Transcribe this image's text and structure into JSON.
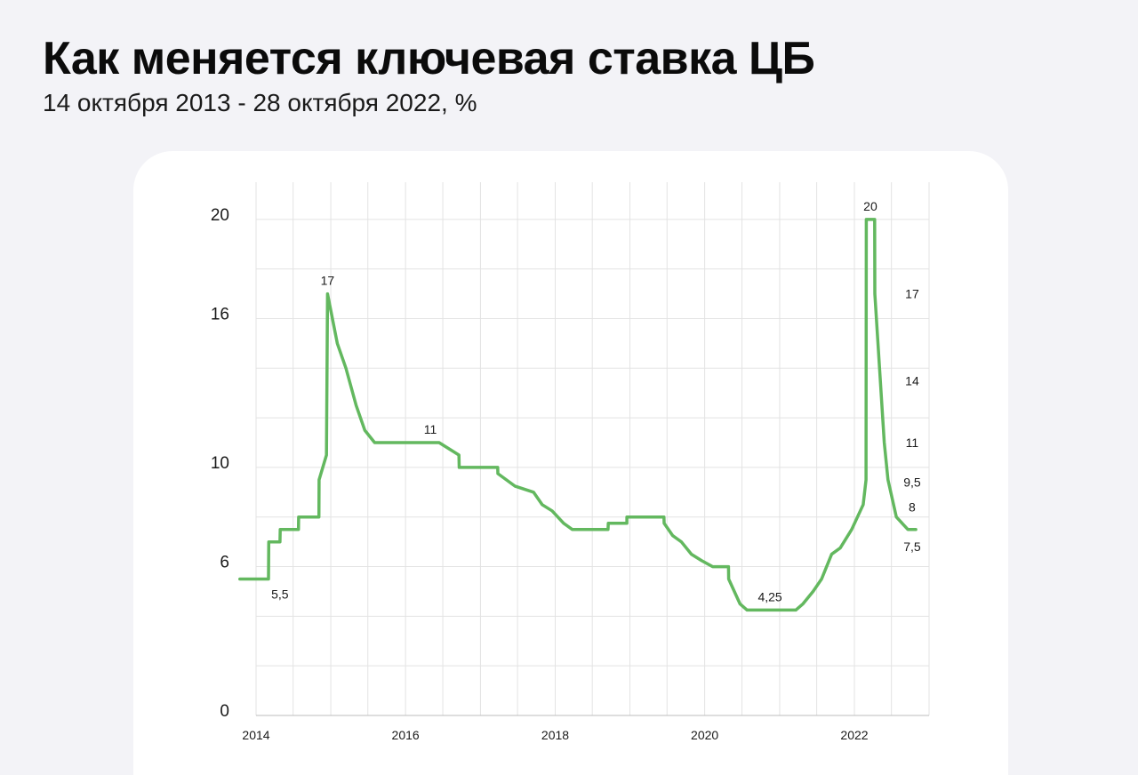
{
  "header": {
    "title": "Как меняется ключевая ставка ЦБ",
    "subtitle": "14 октября 2013 - 28 октября 2022, %"
  },
  "colors": {
    "line": "#63b85f",
    "grid": "#e3e3e3",
    "axis": "#bdbdbd"
  },
  "chart_data": {
    "type": "line",
    "title": "Как меняется ключевая ставка ЦБ",
    "subtitle": "14 октября 2013 - 28 октября 2022, %",
    "xlabel": "",
    "ylabel": "",
    "xlim": [
      "2013-10-14",
      "2022-10-28"
    ],
    "ylim": [
      0,
      21.5
    ],
    "y_ticks": [
      0,
      6,
      10,
      16,
      20
    ],
    "y_tick_labels": [
      "0",
      "6",
      "10",
      "16",
      "20"
    ],
    "x_ticks": [
      "2014-01-01",
      "2016-01-01",
      "2018-01-01",
      "2020-01-01",
      "2022-01-01"
    ],
    "x_tick_labels": [
      "2014",
      "2016",
      "2018",
      "2020",
      "2022"
    ],
    "grid": true,
    "series": [
      {
        "values": [
          [
            "2013-10-14",
            5.5
          ],
          [
            "2014-03-03",
            5.5
          ],
          [
            "2014-03-04",
            7
          ],
          [
            "2014-04-28",
            7
          ],
          [
            "2014-04-29",
            7.5
          ],
          [
            "2014-07-27",
            7.5
          ],
          [
            "2014-07-28",
            8
          ],
          [
            "2014-11-04",
            8
          ],
          [
            "2014-11-05",
            9.5
          ],
          [
            "2014-12-11",
            10.5
          ],
          [
            "2014-12-16",
            17
          ],
          [
            "2015-02-02",
            15
          ],
          [
            "2015-03-16",
            14
          ],
          [
            "2015-05-05",
            12.5
          ],
          [
            "2015-06-16",
            11.5
          ],
          [
            "2015-08-03",
            11
          ],
          [
            "2016-06-13",
            11
          ],
          [
            "2016-09-18",
            10.5
          ],
          [
            "2016-09-19",
            10
          ],
          [
            "2017-03-26",
            10
          ],
          [
            "2017-03-27",
            9.75
          ],
          [
            "2017-06-18",
            9.25
          ],
          [
            "2017-09-17",
            9
          ],
          [
            "2017-10-29",
            8.5
          ],
          [
            "2017-12-17",
            8.25
          ],
          [
            "2018-02-11",
            7.75
          ],
          [
            "2018-03-25",
            7.5
          ],
          [
            "2018-09-16",
            7.5
          ],
          [
            "2018-09-17",
            7.75
          ],
          [
            "2018-12-17",
            7.75
          ],
          [
            "2018-12-17",
            8
          ],
          [
            "2019-06-16",
            8
          ],
          [
            "2019-06-17",
            7.75
          ],
          [
            "2019-07-29",
            7.25
          ],
          [
            "2019-09-09",
            7
          ],
          [
            "2019-10-28",
            6.5
          ],
          [
            "2019-12-16",
            6.25
          ],
          [
            "2020-02-09",
            6
          ],
          [
            "2020-04-26",
            6
          ],
          [
            "2020-04-27",
            5.5
          ],
          [
            "2020-06-21",
            4.5
          ],
          [
            "2020-07-26",
            4.25
          ],
          [
            "2021-03-21",
            4.25
          ],
          [
            "2021-04-25",
            4.5
          ],
          [
            "2021-06-13",
            5
          ],
          [
            "2021-07-25",
            5.5
          ],
          [
            "2021-09-12",
            6.5
          ],
          [
            "2021-10-24",
            6.75
          ],
          [
            "2021-12-19",
            7.5
          ],
          [
            "2022-02-13",
            8.5
          ],
          [
            "2022-02-27",
            9.5
          ],
          [
            "2022-02-28",
            20
          ],
          [
            "2022-04-10",
            20
          ],
          [
            "2022-04-11",
            17
          ],
          [
            "2022-05-04",
            14
          ],
          [
            "2022-05-27",
            11
          ],
          [
            "2022-06-14",
            9.5
          ],
          [
            "2022-07-25",
            8
          ],
          [
            "2022-09-19",
            7.5
          ],
          [
            "2022-10-28",
            7.5
          ]
        ]
      }
    ],
    "annotations": [
      {
        "text": "5,5",
        "x": "2014-02-01",
        "y": 5.5,
        "placement": "below"
      },
      {
        "text": "17",
        "x": "2014-12-16",
        "y": 17,
        "placement": "above"
      },
      {
        "text": "11",
        "x": "2016-05-01",
        "y": 11,
        "placement": "above"
      },
      {
        "text": "4,25",
        "x": "2020-11-15",
        "y": 4.25,
        "placement": "above"
      },
      {
        "text": "20",
        "x": "2022-03-20",
        "y": 20,
        "placement": "above"
      },
      {
        "text": "17",
        "x": "2022-10-10",
        "y": 17,
        "placement": "right"
      },
      {
        "text": "14",
        "x": "2022-10-10",
        "y": 13.5,
        "placement": "right"
      },
      {
        "text": "11",
        "x": "2022-10-10",
        "y": 11,
        "placement": "right"
      },
      {
        "text": "9,5",
        "x": "2022-10-10",
        "y": 9.4,
        "placement": "right"
      },
      {
        "text": "8",
        "x": "2022-10-10",
        "y": 8.4,
        "placement": "right"
      },
      {
        "text": "7,5",
        "x": "2022-10-10",
        "y": 6.8,
        "placement": "right"
      }
    ]
  }
}
